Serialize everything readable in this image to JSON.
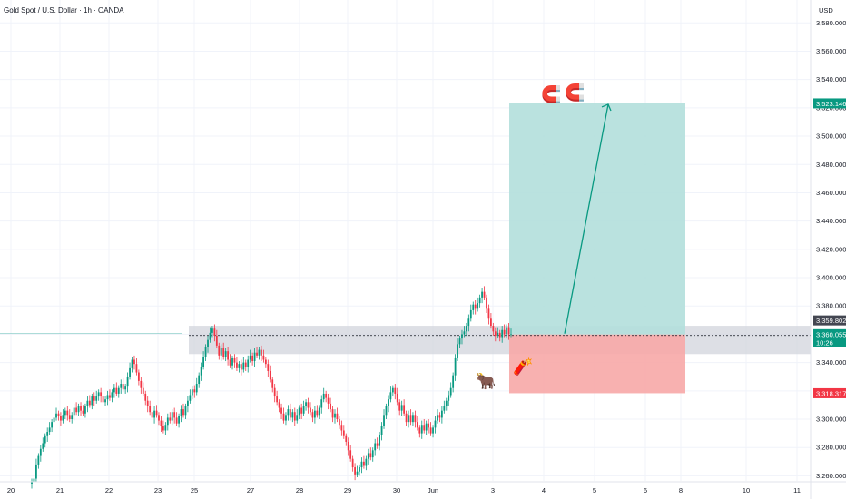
{
  "header": {
    "title": "Gold Spot / U.S. Dollar · 1h · OANDA",
    "currency": "USD"
  },
  "colors": {
    "up": "#089981",
    "down": "#f23645",
    "grid": "#f0f3fa",
    "profit_zone": "#b2dfdb",
    "loss_zone": "#f7a9a7",
    "sr_zone": "#d1d4dc",
    "arrow": "#089981",
    "price_tag": "#089981",
    "stop_tag": "#f23645",
    "entry_tag": "#434651"
  },
  "icons": [
    "magnet-icon",
    "magnet-icon",
    "bull-icon",
    "dynamite-icon"
  ],
  "chart_data": {
    "type": "candlestick",
    "title": "Gold Spot / U.S. Dollar · 1h · OANDA",
    "ylim": [
      3250,
      3593
    ],
    "y_ticks": [
      "3,580.000",
      "3,560.000",
      "3,540.000",
      "3,520.000",
      "3,500.000",
      "3,480.000",
      "3,460.000",
      "3,440.000",
      "3,420.000",
      "3,400.000",
      "3,380.000",
      "3,360.000",
      "3,340.000",
      "3,320.000",
      "3,300.000",
      "3,280.000",
      "3,260.000"
    ],
    "y_tick_values": [
      3580,
      3560,
      3540,
      3520,
      3500,
      3480,
      3460,
      3440,
      3420,
      3400,
      3380,
      3360,
      3340,
      3320,
      3300,
      3280,
      3260
    ],
    "x_labels": [
      "20",
      "21",
      "22",
      "23",
      "25",
      "27",
      "28",
      "29",
      "30",
      "Jun",
      "3",
      "4",
      "5",
      "6",
      "8",
      "10",
      "11"
    ],
    "price_tags": {
      "target": "3,523.146",
      "last": "3,360.055",
      "countdown": "10:26",
      "entry": "3,359.802",
      "stop": "3,318.317"
    },
    "levels": {
      "target": 3523.146,
      "last": 3360.055,
      "entry": 3359.802,
      "stop": 3318.317,
      "sr_zone": [
        3346,
        3366
      ]
    },
    "closes": [
      3256,
      3258,
      3268,
      3274,
      3279,
      3283,
      3288,
      3291,
      3294,
      3298,
      3301,
      3304,
      3302,
      3299,
      3303,
      3306,
      3303,
      3300,
      3303,
      3308,
      3305,
      3309,
      3306,
      3304,
      3309,
      3313,
      3310,
      3316,
      3313,
      3316,
      3319,
      3316,
      3312,
      3314,
      3317,
      3315,
      3319,
      3322,
      3318,
      3322,
      3325,
      3321,
      3323,
      3330,
      3336,
      3342,
      3339,
      3333,
      3327,
      3322,
      3318,
      3313,
      3309,
      3305,
      3301,
      3306,
      3303,
      3299,
      3295,
      3292,
      3296,
      3301,
      3299,
      3305,
      3301,
      3297,
      3302,
      3307,
      3303,
      3309,
      3313,
      3317,
      3321,
      3319,
      3325,
      3331,
      3337,
      3344,
      3351,
      3356,
      3361,
      3364,
      3359,
      3352,
      3345,
      3350,
      3344,
      3348,
      3342,
      3338,
      3343,
      3340,
      3336,
      3339,
      3335,
      3340,
      3337,
      3342,
      3345,
      3341,
      3347,
      3345,
      3349,
      3345,
      3342,
      3339,
      3334,
      3328,
      3322,
      3316,
      3312,
      3308,
      3304,
      3299,
      3303,
      3307,
      3301,
      3305,
      3299,
      3303,
      3308,
      3304,
      3309,
      3312,
      3308,
      3305,
      3301,
      3306,
      3303,
      3308,
      3314,
      3318,
      3315,
      3311,
      3307,
      3301,
      3304,
      3300,
      3296,
      3292,
      3288,
      3284,
      3278,
      3272,
      3266,
      3261,
      3263,
      3266,
      3270,
      3267,
      3272,
      3276,
      3273,
      3278,
      3283,
      3281,
      3289,
      3295,
      3303,
      3309,
      3314,
      3319,
      3322,
      3318,
      3312,
      3306,
      3310,
      3304,
      3298,
      3303,
      3298,
      3303,
      3298,
      3294,
      3290,
      3296,
      3292,
      3297,
      3294,
      3290,
      3294,
      3299,
      3303,
      3301,
      3306,
      3309,
      3313,
      3317,
      3322,
      3331,
      3343,
      3353,
      3357,
      3360,
      3362,
      3366,
      3371,
      3377,
      3381,
      3378,
      3382,
      3386,
      3390,
      3386,
      3378,
      3371,
      3366,
      3362,
      3359,
      3361,
      3358,
      3363,
      3360,
      3365,
      3360,
      3360
    ]
  }
}
